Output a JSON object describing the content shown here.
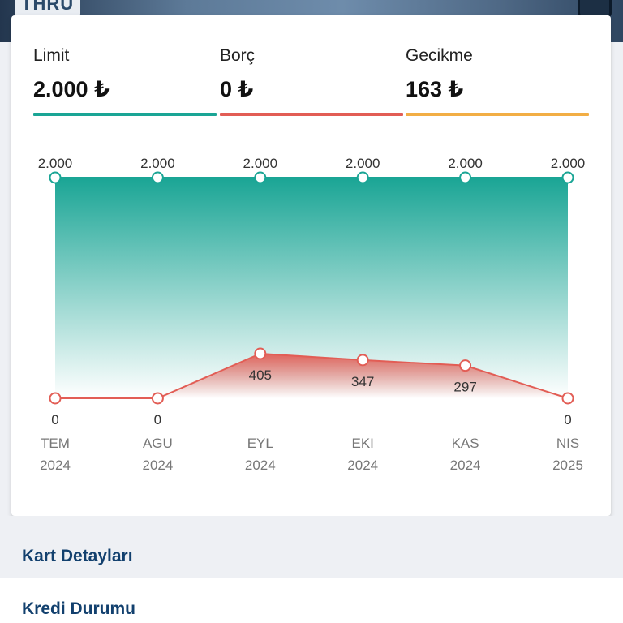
{
  "banner": {
    "text": "THRU"
  },
  "stats": [
    {
      "label": "Limit",
      "value": "2.000 ₺",
      "color": "#1aa595"
    },
    {
      "label": "Borç",
      "value": "0 ₺",
      "color": "#e25d55"
    },
    {
      "label": "Gecikme",
      "value": "163 ₺",
      "color": "#f2ae45"
    }
  ],
  "chart_data": {
    "type": "area",
    "categories": [
      {
        "month": "TEM",
        "year": "2024"
      },
      {
        "month": "AGU",
        "year": "2024"
      },
      {
        "month": "EYL",
        "year": "2024"
      },
      {
        "month": "EKI",
        "year": "2024"
      },
      {
        "month": "KAS",
        "year": "2024"
      },
      {
        "month": "NIS",
        "year": "2025"
      }
    ],
    "series": [
      {
        "values": [
          2000,
          2000,
          2000,
          2000,
          2000,
          2000
        ],
        "labels": [
          "2.000",
          "2.000",
          "2.000",
          "2.000",
          "2.000",
          "2.000"
        ],
        "color": "#1aa595"
      },
      {
        "values": [
          0,
          0,
          405,
          347,
          297,
          0
        ],
        "labels": [
          "0",
          "0",
          "405",
          "347",
          "297",
          "0"
        ],
        "color": "#e25d55"
      }
    ]
  },
  "sections": {
    "card_details": "Kart Detayları",
    "credit_status": "Kredi Durumu"
  }
}
